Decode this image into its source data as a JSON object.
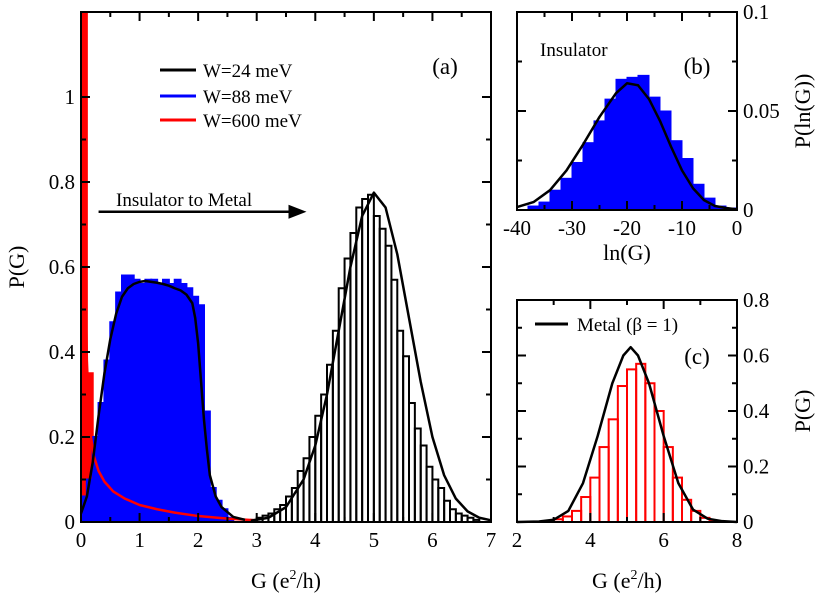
{
  "chart_data": [
    {
      "id": "a",
      "type": "bar",
      "panel_label": "(a)",
      "xlabel": "G (e²/h)",
      "ylabel": "P(G)",
      "xlim": [
        0,
        7
      ],
      "ylim": [
        0,
        1.2
      ],
      "xticks": [
        0,
        1,
        2,
        3,
        4,
        5,
        6,
        7
      ],
      "yticks": [
        0,
        0.2,
        0.4,
        0.6,
        0.8,
        1
      ],
      "xtick_labels": [
        "0",
        "1",
        "2",
        "3",
        "4",
        "5",
        "6",
        "7"
      ],
      "ytick_labels": [
        "0",
        "0.2",
        "0.4",
        "0.6",
        "0.8",
        "1"
      ],
      "annotation": "Insulator to Metal",
      "annotation_arrow": {
        "from": [
          0.3,
          0.73
        ],
        "to": [
          3.85,
          0.73
        ]
      },
      "legend": [
        {
          "label": "W=24 meV",
          "color": "#000000"
        },
        {
          "label": "W=88 meV",
          "color": "#0000ff"
        },
        {
          "label": "W=600 meV",
          "color": "#ff0000"
        }
      ],
      "series": [
        {
          "name": "W=600 meV",
          "color": "#ff0000",
          "bin_width": 0.1,
          "bin_start": 0.0,
          "hist": [
            1.22,
            0.35,
            0.12,
            0.09,
            0.07,
            0.05,
            0.05,
            0.04,
            0.03,
            0.03,
            0.02,
            0.02,
            0.02,
            0.02,
            0.015,
            0.015,
            0.012,
            0.01,
            0.01,
            0.008,
            0.006
          ],
          "fit": [
            [
              0.02,
              1.2
            ],
            [
              0.04,
              0.98
            ],
            [
              0.06,
              0.72
            ],
            [
              0.08,
              0.52
            ],
            [
              0.1,
              0.38
            ],
            [
              0.13,
              0.28
            ],
            [
              0.17,
              0.2
            ],
            [
              0.22,
              0.155
            ],
            [
              0.3,
              0.12
            ],
            [
              0.4,
              0.095
            ],
            [
              0.55,
              0.072
            ],
            [
              0.75,
              0.055
            ],
            [
              1.0,
              0.04
            ],
            [
              1.3,
              0.03
            ],
            [
              1.6,
              0.022
            ],
            [
              2.0,
              0.014
            ],
            [
              2.5,
              0.008
            ],
            [
              3.0,
              0.004
            ]
          ]
        },
        {
          "name": "W=88 meV",
          "color": "#0000ff",
          "bin_width": 0.1,
          "bin_start": 0.0,
          "hist": [
            0.06,
            0.1,
            0.2,
            0.28,
            0.38,
            0.47,
            0.54,
            0.58,
            0.58,
            0.57,
            0.56,
            0.57,
            0.57,
            0.56,
            0.57,
            0.56,
            0.57,
            0.56,
            0.55,
            0.53,
            0.51,
            0.26,
            0.08,
            0.05,
            0.03,
            0.01,
            0.0,
            0.0
          ],
          "fit": [
            [
              0.0,
              0.02
            ],
            [
              0.1,
              0.06
            ],
            [
              0.2,
              0.14
            ],
            [
              0.3,
              0.25
            ],
            [
              0.4,
              0.35
            ],
            [
              0.5,
              0.43
            ],
            [
              0.6,
              0.49
            ],
            [
              0.7,
              0.53
            ],
            [
              0.8,
              0.55
            ],
            [
              0.9,
              0.56
            ],
            [
              1.0,
              0.565
            ],
            [
              1.1,
              0.567
            ],
            [
              1.2,
              0.565
            ],
            [
              1.3,
              0.563
            ],
            [
              1.4,
              0.56
            ],
            [
              1.5,
              0.556
            ],
            [
              1.6,
              0.55
            ],
            [
              1.7,
              0.545
            ],
            [
              1.8,
              0.535
            ],
            [
              1.9,
              0.515
            ],
            [
              1.95,
              0.48
            ],
            [
              2.0,
              0.42
            ],
            [
              2.05,
              0.33
            ],
            [
              2.1,
              0.24
            ],
            [
              2.15,
              0.17
            ],
            [
              2.2,
              0.11
            ],
            [
              2.3,
              0.06
            ],
            [
              2.4,
              0.035
            ],
            [
              2.6,
              0.012
            ],
            [
              2.8,
              0.005
            ]
          ]
        },
        {
          "name": "W=24 meV",
          "color": "#000000",
          "bin_width": 0.1,
          "bin_start": 2.9,
          "hist": [
            0.005,
            0.01,
            0.015,
            0.02,
            0.03,
            0.04,
            0.06,
            0.08,
            0.12,
            0.15,
            0.2,
            0.25,
            0.3,
            0.37,
            0.45,
            0.55,
            0.62,
            0.68,
            0.74,
            0.76,
            0.77,
            0.72,
            0.69,
            0.65,
            0.57,
            0.45,
            0.39,
            0.28,
            0.22,
            0.18,
            0.13,
            0.1,
            0.08,
            0.05,
            0.03,
            0.02,
            0.015,
            0.01,
            0.005
          ],
          "fit": [
            [
              2.9,
              0.003
            ],
            [
              3.2,
              0.01
            ],
            [
              3.5,
              0.035
            ],
            [
              3.8,
              0.1
            ],
            [
              4.0,
              0.18
            ],
            [
              4.2,
              0.3
            ],
            [
              4.4,
              0.45
            ],
            [
              4.6,
              0.6
            ],
            [
              4.8,
              0.72
            ],
            [
              5.0,
              0.775
            ],
            [
              5.2,
              0.74
            ],
            [
              5.4,
              0.63
            ],
            [
              5.6,
              0.48
            ],
            [
              5.8,
              0.33
            ],
            [
              6.0,
              0.2
            ],
            [
              6.2,
              0.11
            ],
            [
              6.4,
              0.055
            ],
            [
              6.6,
              0.025
            ],
            [
              6.8,
              0.01
            ],
            [
              7.0,
              0.004
            ]
          ]
        }
      ]
    },
    {
      "id": "b",
      "type": "bar",
      "panel_label": "(b)",
      "xlabel": "ln(G)",
      "ylabel": "P(ln(G))",
      "xlim": [
        -40,
        0
      ],
      "ylim": [
        0,
        0.1
      ],
      "xticks": [
        -40,
        -30,
        -20,
        -10,
        0
      ],
      "yticks": [
        0,
        0.05,
        0.1
      ],
      "xtick_labels": [
        "-40",
        "-30",
        "-20",
        "-10",
        "0"
      ],
      "ytick_labels": [
        "0",
        "0.05",
        "0.1"
      ],
      "annotation": "Insulator",
      "series": [
        {
          "name": "W=88 meV (insulator)",
          "color": "#0000ff",
          "bin_width": 2,
          "bin_start": -40,
          "hist": [
            0.0,
            0.002,
            0.004,
            0.01,
            0.016,
            0.024,
            0.034,
            0.045,
            0.056,
            0.066,
            0.067,
            0.068,
            0.057,
            0.05,
            0.035,
            0.026,
            0.013,
            0.006,
            0.002,
            0.001
          ],
          "fit": [
            [
              -40,
              0.0015
            ],
            [
              -37,
              0.004
            ],
            [
              -34,
              0.01
            ],
            [
              -31,
              0.02
            ],
            [
              -28,
              0.033
            ],
            [
              -25,
              0.047
            ],
            [
              -22,
              0.059
            ],
            [
              -20,
              0.064
            ],
            [
              -18,
              0.063
            ],
            [
              -16,
              0.056
            ],
            [
              -14,
              0.045
            ],
            [
              -12,
              0.032
            ],
            [
              -10,
              0.02
            ],
            [
              -8,
              0.011
            ],
            [
              -6,
              0.005
            ],
            [
              -4,
              0.002
            ],
            [
              -2,
              0.001
            ],
            [
              0,
              0.0003
            ]
          ]
        }
      ]
    },
    {
      "id": "c",
      "type": "bar",
      "xlabel": "G (e²/h)",
      "ylabel": "P(G)",
      "panel_label": "(c)",
      "xlim": [
        2,
        8
      ],
      "ylim": [
        0,
        0.8
      ],
      "xticks": [
        2,
        4,
        6,
        8
      ],
      "yticks": [
        0,
        0.2,
        0.4,
        0.6,
        0.8
      ],
      "xtick_labels": [
        "2",
        "4",
        "6",
        "8"
      ],
      "ytick_labels": [
        "0",
        "0.2",
        "0.4",
        "0.6",
        "0.8"
      ],
      "legend": [
        {
          "label": "Metal (β = 1)",
          "color": "#000000"
        }
      ],
      "series": [
        {
          "name": "Metal",
          "color": "#ff0000",
          "bin_width": 0.25,
          "bin_start": 2.5,
          "hist": [
            0.0,
            0.003,
            0.01,
            0.02,
            0.04,
            0.09,
            0.16,
            0.27,
            0.37,
            0.49,
            0.55,
            0.57,
            0.5,
            0.4,
            0.27,
            0.16,
            0.08,
            0.04,
            0.015,
            0.005
          ],
          "fit": [
            [
              2.0,
              0.0
            ],
            [
              2.6,
              0.002
            ],
            [
              3.0,
              0.008
            ],
            [
              3.4,
              0.04
            ],
            [
              3.8,
              0.14
            ],
            [
              4.2,
              0.31
            ],
            [
              4.6,
              0.5
            ],
            [
              4.9,
              0.6
            ],
            [
              5.1,
              0.63
            ],
            [
              5.3,
              0.6
            ],
            [
              5.6,
              0.5
            ],
            [
              6.0,
              0.31
            ],
            [
              6.4,
              0.14
            ],
            [
              6.8,
              0.045
            ],
            [
              7.2,
              0.012
            ],
            [
              7.6,
              0.003
            ],
            [
              8.0,
              0.0
            ]
          ]
        }
      ]
    }
  ]
}
